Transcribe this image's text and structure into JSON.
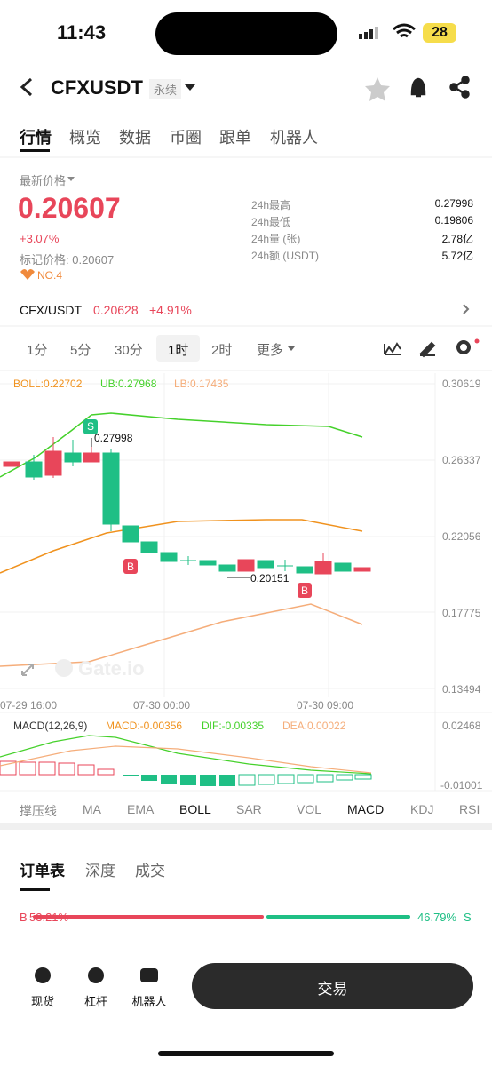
{
  "status": {
    "time": "11:43",
    "battery": "28"
  },
  "header": {
    "symbol": "CFXUSDT",
    "tag": "永续"
  },
  "tabs": [
    "行情",
    "概览",
    "数据",
    "币圈",
    "跟单",
    "机器人"
  ],
  "price": {
    "label": "最新价格",
    "last": "0.20607",
    "change": "+3.07%",
    "mark": "标记价格: 0.20607",
    "rank": "NO.4"
  },
  "stats": [
    [
      "24h最高",
      "0.27998"
    ],
    [
      "24h最低",
      "0.19806"
    ],
    [
      "24h量 (张)",
      "2.78亿"
    ],
    [
      "24h额 (USDT)",
      "5.72亿"
    ]
  ],
  "spot": {
    "pair": "CFX/USDT",
    "price": "0.20628",
    "change": "+4.91%"
  },
  "intervals": [
    "1分",
    "5分",
    "30分",
    "1时",
    "2时",
    "更多"
  ],
  "boll": {
    "boll": "BOLL:0.22702",
    "ub": "UB:0.27968",
    "lb": "LB:0.17435"
  },
  "price_axis": [
    "0.30619",
    "0.26337",
    "0.22056",
    "0.17775",
    "0.13494"
  ],
  "time_axis": [
    "07-29 16:00",
    "07-30 00:00",
    "07-30 09:00"
  ],
  "annotations": {
    "high": "0.27998",
    "low": "0.20151",
    "sell": "S",
    "buy1": "B",
    "buy2": "B",
    "watermark": "Gate.io"
  },
  "macd": {
    "name": "MACD(12,26,9)",
    "macd": "MACD:-0.00356",
    "dif": "DIF:-0.00335",
    "dea": "DEA:0.00022",
    "axis": [
      "0.02468",
      "-0.01001"
    ]
  },
  "indicators": [
    "撑压线",
    "MA",
    "EMA",
    "BOLL",
    "SAR",
    "VOL",
    "MACD",
    "KDJ",
    "RSI"
  ],
  "order_tabs": [
    "订单表",
    "深度",
    "成交"
  ],
  "ratio": {
    "buy_label": "B",
    "buy": "53.21%",
    "sell": "46.79%",
    "sell_label": "S"
  },
  "nav": [
    "现货",
    "杠杆",
    "机器人"
  ],
  "trade": "交易"
}
